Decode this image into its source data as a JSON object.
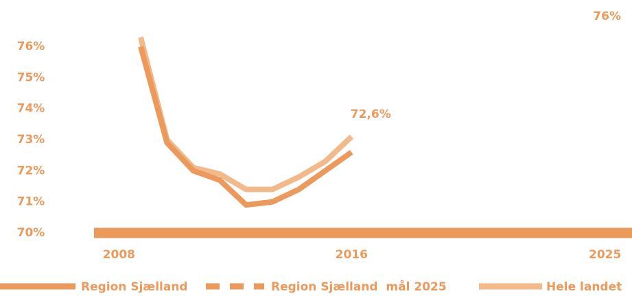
{
  "chart_data": {
    "type": "line",
    "x": [
      2008,
      2009,
      2010,
      2011,
      2012,
      2013,
      2014,
      2015,
      2016,
      2017,
      2018,
      2019,
      2020,
      2021,
      2022,
      2023,
      2024,
      2025
    ],
    "xlim": [
      2008,
      2025
    ],
    "xticks": [
      2008,
      2016,
      2025
    ],
    "ylim": [
      70,
      77.5
    ],
    "yticks": [
      {
        "value": 70,
        "label": "70%"
      },
      {
        "value": 71,
        "label": "71%"
      },
      {
        "value": 72,
        "label": "72%"
      },
      {
        "value": 73,
        "label": "73%"
      },
      {
        "value": 74,
        "label": "74%"
      },
      {
        "value": 75,
        "label": "75%"
      },
      {
        "value": 76,
        "label": "76%"
      }
    ],
    "legend": "bottom",
    "series": [
      {
        "name": "Region Sjælland",
        "color": "#eb9a5c",
        "dashed": false,
        "values": [
          76.0,
          72.9,
          72.0,
          71.7,
          70.9,
          71.0,
          71.4,
          72.0,
          72.6,
          null,
          null,
          null,
          null,
          null,
          null,
          null,
          null,
          null
        ]
      },
      {
        "name": "Region Sjælland  mål 2025",
        "color": "#eb9a5c",
        "dashed": true,
        "values": [
          null,
          null,
          null,
          null,
          null,
          null,
          null,
          null,
          72.6,
          null,
          null,
          null,
          null,
          null,
          null,
          null,
          null,
          76
        ],
        "value_labels": [
          null,
          null,
          null,
          null,
          null,
          null,
          null,
          null,
          "72,6%",
          null,
          null,
          null,
          null,
          null,
          null,
          null,
          null,
          "76%"
        ]
      },
      {
        "name": "Hele landet",
        "color": "#f2b98a",
        "dashed": false,
        "values": [
          76.3,
          73.0,
          72.1,
          71.9,
          71.4,
          71.4,
          71.8,
          72.3,
          73.1,
          null,
          null,
          null,
          null,
          null,
          null,
          null,
          null,
          null
        ]
      }
    ]
  }
}
